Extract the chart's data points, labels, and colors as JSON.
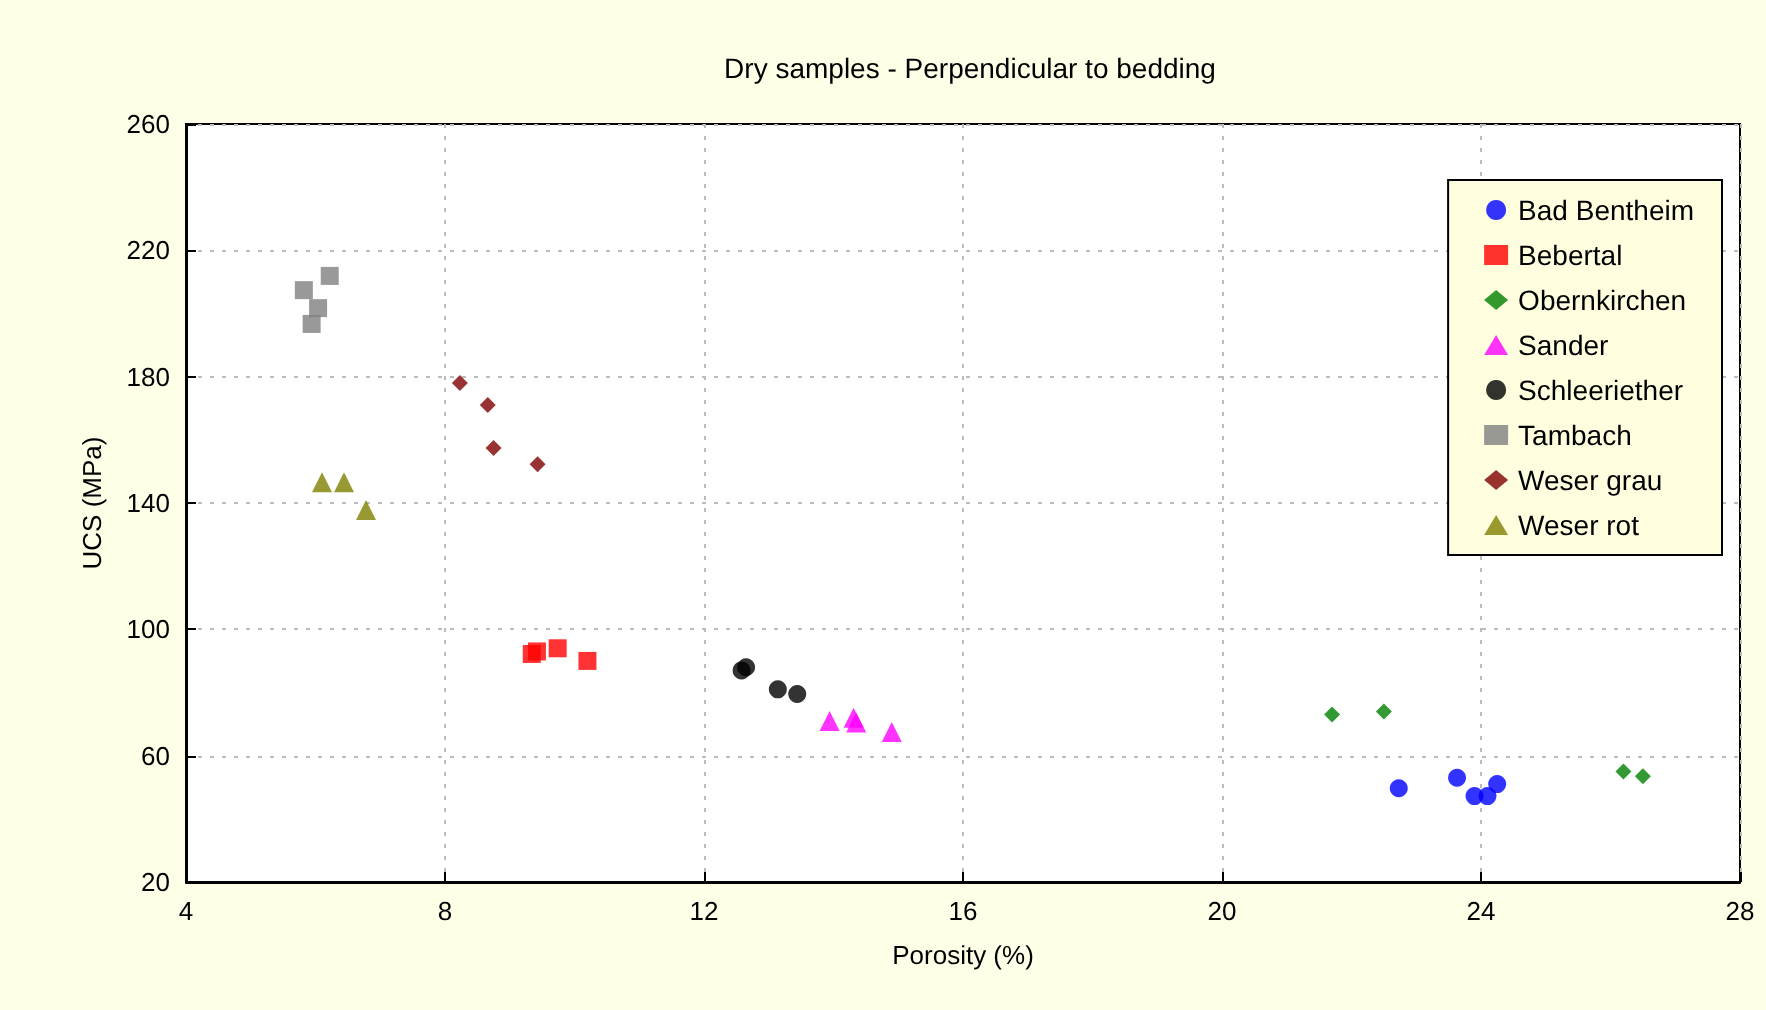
{
  "chart_data": {
    "type": "scatter",
    "title": "Dry samples - Perpendicular to bedding",
    "xlabel": "Porosity (%)",
    "ylabel": "UCS (MPa)",
    "xlim": [
      4,
      28
    ],
    "xticks": [
      4,
      8,
      12,
      16,
      20,
      24,
      28
    ],
    "ylim": [
      20,
      260
    ],
    "yticks": [
      20,
      60,
      100,
      140,
      180,
      220,
      260
    ],
    "grid": true,
    "legend": "top right",
    "series": [
      {
        "name": "Bad Bentheim",
        "color": "#0000ff",
        "marker": "circle",
        "x": [
          22.73,
          23.63,
          23.9,
          24.1,
          24.25
        ],
        "values": [
          49.7,
          53,
          47.2,
          47.2,
          51
        ]
      },
      {
        "name": "Bebertal",
        "color": "#ff0000",
        "marker": "square",
        "x": [
          9.34,
          9.42,
          9.74,
          10.2
        ],
        "values": [
          92.2,
          93,
          94,
          90
        ]
      },
      {
        "name": "Obernkirchen",
        "color": "#008000",
        "marker": "diamond",
        "x": [
          21.7,
          22.5,
          26.2,
          26.5
        ],
        "values": [
          73,
          74,
          55,
          53.5
        ]
      },
      {
        "name": "Sander",
        "color": "#ff00ff",
        "marker": "triangle",
        "x": [
          13.94,
          14.31,
          14.35,
          14.9
        ],
        "values": [
          71,
          72,
          70.5,
          67.5
        ]
      },
      {
        "name": "Schleeriether",
        "color": "#000000",
        "marker": "circle",
        "x": [
          12.58,
          12.65,
          13.14,
          13.44
        ],
        "values": [
          87,
          88,
          81,
          79.5
        ]
      },
      {
        "name": "Tambach",
        "color": "#808080",
        "marker": "square",
        "x": [
          5.82,
          6.22,
          6.04,
          5.94
        ],
        "values": [
          207.4,
          211.9,
          201.7,
          196.7
        ]
      },
      {
        "name": "Weser grau",
        "color": "#800000",
        "marker": "diamond",
        "x": [
          8.23,
          8.66,
          8.75,
          9.43
        ],
        "values": [
          178,
          171,
          157.4,
          152.3
        ]
      },
      {
        "name": "Weser rot",
        "color": "#808000",
        "marker": "triangle",
        "x": [
          6.1,
          6.44,
          6.78
        ],
        "values": [
          146.6,
          146.6,
          137.8
        ]
      }
    ]
  }
}
